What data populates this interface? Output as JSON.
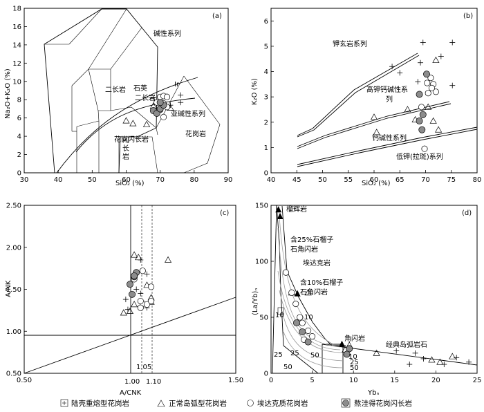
{
  "legend": {
    "items": [
      {
        "symbol": "plus",
        "label": "陆壳重熔型花岗岩"
      },
      {
        "symbol": "triangle",
        "label": "正常岛弧型花岗岩"
      },
      {
        "symbol": "circle",
        "label": "埃达克质花岗岩"
      },
      {
        "symbol": "filled-circle",
        "label": "熬洼得花岗闪长岩"
      }
    ]
  },
  "chart_data": [
    {
      "id": "a",
      "panel_label": "(a)",
      "type": "scatter",
      "xlabel": "SiO₂ (%)",
      "ylabel": "Na₂O+K₂O (%)",
      "xlim": [
        30,
        90
      ],
      "ylim": [
        0,
        18
      ],
      "xticks": [
        30,
        40,
        50,
        60,
        70,
        80,
        90
      ],
      "yticks": [
        0,
        2,
        4,
        6,
        8,
        10,
        12,
        14,
        16,
        18
      ],
      "field_labels": [
        "碱性系列",
        "二长岩",
        "石英",
        "二长岩",
        "Ir",
        "亚碱性系列",
        "闪长岩",
        "花岗闪长岩",
        "花岗岩"
      ],
      "series": [
        {
          "symbol": "plus",
          "points": [
            [
              68,
              8.2
            ],
            [
              70,
              8.3
            ],
            [
              72,
              8.4
            ],
            [
              76,
              8.5
            ],
            [
              76,
              7.7
            ],
            [
              73,
              7.4
            ],
            [
              69,
              7.6
            ]
          ]
        },
        {
          "symbol": "triangle",
          "points": [
            [
              60,
              5.7
            ],
            [
              62,
              5.4
            ],
            [
              66,
              5.3
            ],
            [
              73,
              7.1
            ],
            [
              68,
              7.3
            ],
            [
              70,
              8.0
            ]
          ]
        },
        {
          "symbol": "circle",
          "points": [
            [
              70,
              8.3
            ],
            [
              71,
              8.4
            ],
            [
              72,
              8.3
            ],
            [
              71,
              7.6
            ],
            [
              72,
              7.2
            ],
            [
              70,
              6.9
            ],
            [
              71,
              6.1
            ],
            [
              69,
              7.7
            ]
          ]
        },
        {
          "symbol": "filled-circle",
          "points": [
            [
              68,
              6.8
            ],
            [
              69,
              6.5
            ],
            [
              70,
              7.0
            ],
            [
              71,
              7.4
            ],
            [
              70,
              7.7
            ]
          ]
        }
      ]
    },
    {
      "id": "b",
      "panel_label": "(b)",
      "type": "scatter",
      "xlabel": "SiO₂ (%)",
      "ylabel": "K₂O (%)",
      "xlim": [
        40,
        80
      ],
      "ylim": [
        0,
        6.5
      ],
      "xticks": [
        40,
        45,
        50,
        55,
        60,
        65,
        70,
        75,
        80
      ],
      "yticks": [
        0,
        1,
        2,
        3,
        4,
        5,
        6
      ],
      "field_labels": [
        "钾玄岩系列",
        "高钾钙碱性系",
        "列",
        "钙碱性系列",
        "低钾(拉斑)系列"
      ],
      "series": [
        {
          "symbol": "plus",
          "points": [
            [
              69.5,
              5.15
            ],
            [
              75.2,
              5.15
            ],
            [
              73,
              4.6
            ],
            [
              63.5,
              4.2
            ],
            [
              69,
              4.35
            ],
            [
              65,
              3.95
            ],
            [
              68.5,
              3.6
            ],
            [
              75.2,
              3.45
            ]
          ]
        },
        {
          "symbol": "triangle",
          "points": [
            [
              72,
              4.45
            ],
            [
              60,
              2.2
            ],
            [
              60.5,
              1.6
            ],
            [
              66.5,
              2.5
            ],
            [
              70.5,
              2.6
            ],
            [
              71.5,
              2.05
            ],
            [
              72.5,
              1.7
            ],
            [
              68,
              2.1
            ]
          ]
        },
        {
          "symbol": "circle",
          "points": [
            [
              70.3,
              3.55
            ],
            [
              71,
              3.75
            ],
            [
              71.5,
              3.5
            ],
            [
              72,
              3.2
            ],
            [
              70.5,
              3.15
            ],
            [
              69.2,
              2.6
            ],
            [
              69.8,
              0.95
            ],
            [
              71.2,
              3.35
            ]
          ]
        },
        {
          "symbol": "filled-circle",
          "points": [
            [
              70.2,
              3.9
            ],
            [
              68.8,
              3.1
            ],
            [
              69.5,
              2.3
            ],
            [
              68.8,
              2.05
            ],
            [
              69.3,
              1.7
            ]
          ]
        }
      ]
    },
    {
      "id": "c",
      "panel_label": "(c)",
      "type": "scatter",
      "xlabel": "A/CNK",
      "ylabel": "A/NK",
      "xlim": [
        0.5,
        1.5
      ],
      "ylim": [
        0.5,
        2.5
      ],
      "xticks": [
        0.5,
        1.0,
        1.5
      ],
      "yticks": [
        0.5,
        1.0,
        1.5,
        2.0,
        2.5
      ],
      "special_ticks": [
        "1.00",
        "1.05",
        "1.10"
      ],
      "dashed_lines_x": [
        1.05,
        1.1
      ],
      "series": [
        {
          "symbol": "plus",
          "points": [
            [
              1.05,
              1.85
            ],
            [
              1.08,
              1.68
            ],
            [
              0.98,
              1.38
            ],
            [
              1.05,
              1.45
            ],
            [
              1.08,
              1.28
            ],
            [
              0.99,
              1.26
            ],
            [
              1.03,
              1.5
            ]
          ]
        },
        {
          "symbol": "triangle",
          "points": [
            [
              1.02,
              1.91
            ],
            [
              1.04,
              1.88
            ],
            [
              1.18,
              1.85
            ],
            [
              1.08,
              1.55
            ],
            [
              1.1,
              1.4
            ],
            [
              1.1,
              1.35
            ],
            [
              0.97,
              1.22
            ],
            [
              1.0,
              1.24
            ],
            [
              1.02,
              1.32
            ]
          ]
        },
        {
          "symbol": "circle",
          "points": [
            [
              1.06,
              1.72
            ],
            [
              1.02,
              1.62
            ],
            [
              1.1,
              1.53
            ],
            [
              1.06,
              1.33
            ],
            [
              1.08,
              1.32
            ],
            [
              1.05,
              1.28
            ],
            [
              1.05,
              1.36
            ],
            [
              1.1,
              1.36
            ]
          ]
        },
        {
          "symbol": "filled-circle",
          "points": [
            [
              1.03,
              1.7
            ],
            [
              1.02,
              1.65
            ],
            [
              1.0,
              1.56
            ],
            [
              1.01,
              1.44
            ],
            [
              1.02,
              1.66
            ]
          ]
        }
      ]
    },
    {
      "id": "d",
      "panel_label": "(d)",
      "type": "scatter",
      "xlabel": "Ybₙ",
      "ylabel": "(La/Yb)ₙ",
      "xlim": [
        0,
        25
      ],
      "ylim": [
        0,
        150
      ],
      "xticks": [
        0,
        5,
        10,
        15,
        20,
        25
      ],
      "yticks": [
        0,
        50,
        100,
        150
      ],
      "field_labels": [
        "榴辉岩",
        "含25%石榴子",
        "石角闪岩",
        "埃达克岩",
        "含10%石榴子",
        "石角闪岩",
        "角闪岩",
        "经典岛弧岩石",
        "10",
        "25",
        "50",
        "10",
        "25",
        "50",
        "10",
        "25",
        "50"
      ],
      "series": [
        {
          "symbol": "plus",
          "points": [
            [
              15.2,
              20
            ],
            [
              16.8,
              8
            ],
            [
              18.5,
              13
            ],
            [
              21,
              8
            ],
            [
              22.5,
              14
            ],
            [
              24,
              10
            ],
            [
              17.5,
              18
            ]
          ]
        },
        {
          "symbol": "triangle",
          "points": [
            [
              2.5,
              72
            ],
            [
              9.5,
              25
            ],
            [
              12.8,
              18
            ],
            [
              19.5,
              12
            ],
            [
              20.5,
              10
            ],
            [
              22,
              15
            ],
            [
              9,
              21
            ],
            [
              4.5,
              72
            ]
          ]
        },
        {
          "symbol": "circle",
          "points": [
            [
              1.8,
              90
            ],
            [
              2.5,
              72
            ],
            [
              3,
              62
            ],
            [
              3.8,
              45
            ],
            [
              4.5,
              38
            ],
            [
              5,
              33
            ],
            [
              3.5,
              50
            ],
            [
              4,
              30
            ]
          ]
        },
        {
          "symbol": "filled-circle",
          "points": [
            [
              3.1,
              45
            ],
            [
              3.8,
              37
            ],
            [
              4.5,
              28
            ],
            [
              9.5,
              22
            ],
            [
              9.2,
              17
            ]
          ]
        }
      ],
      "reference_points": [
        [
          0.9,
          146
        ],
        [
          1.1,
          140
        ],
        [
          3.2,
          71
        ],
        [
          8.6,
          26
        ]
      ]
    }
  ]
}
